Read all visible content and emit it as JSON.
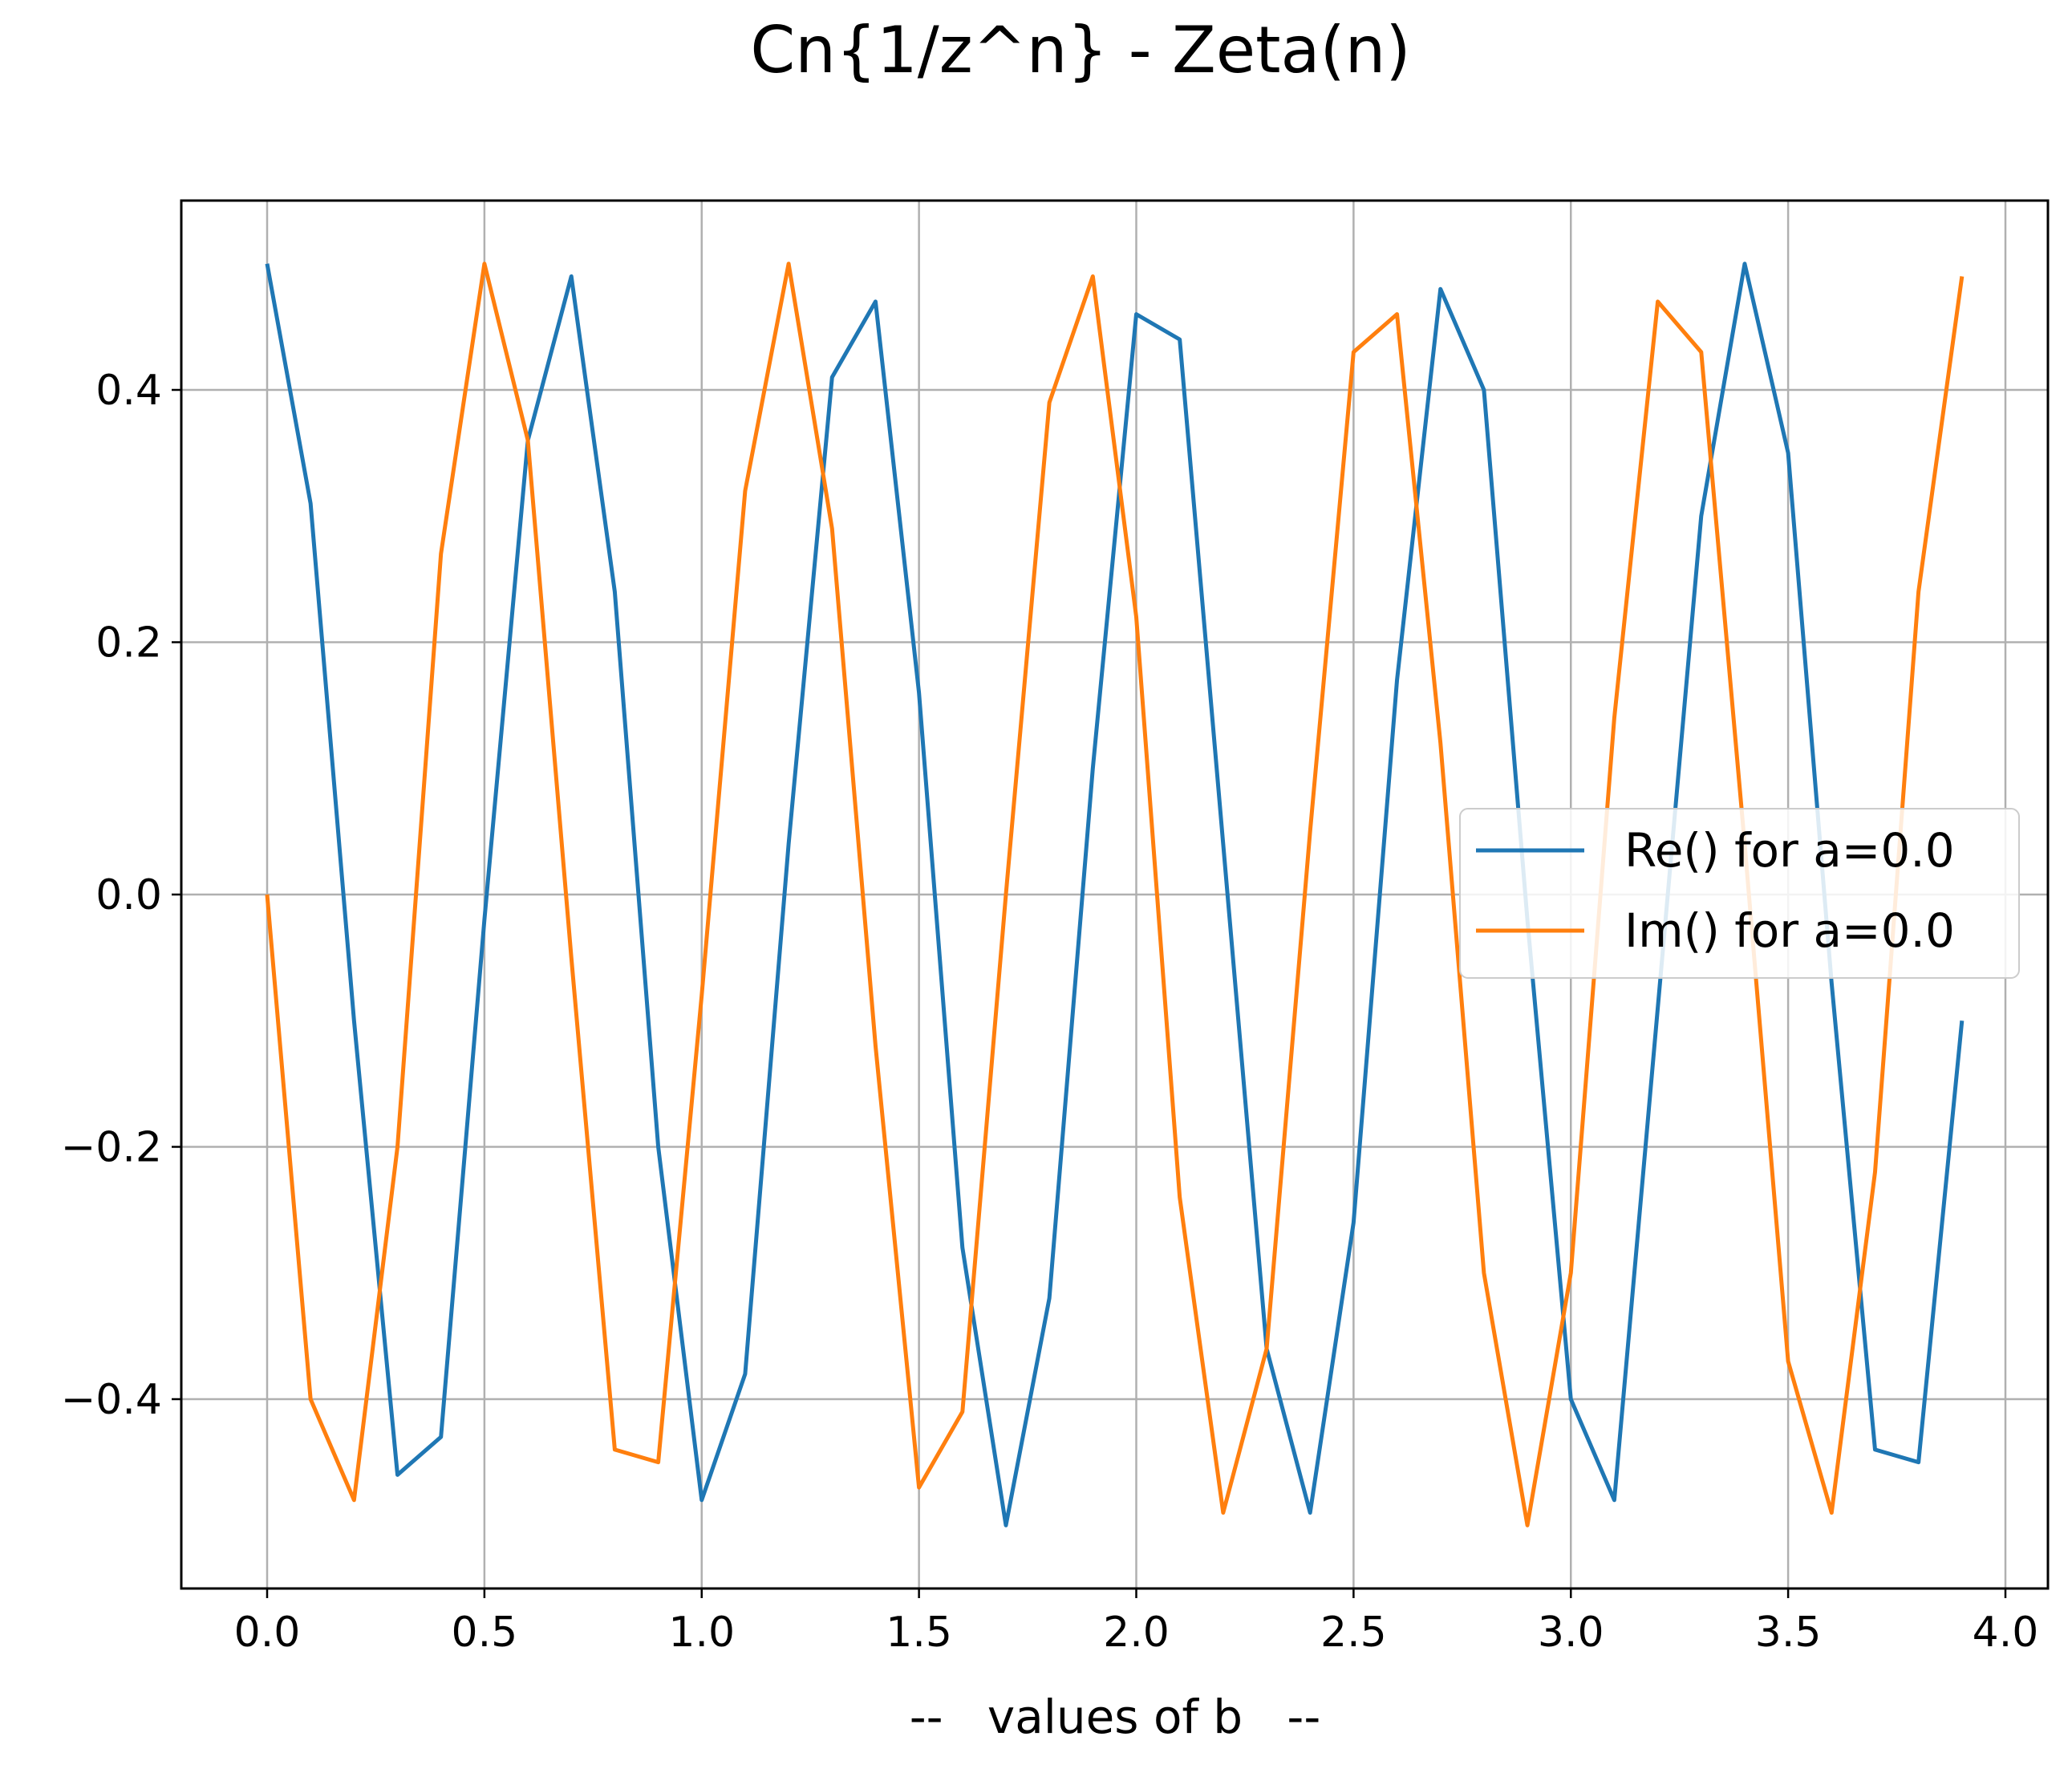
{
  "chart_data": {
    "type": "line",
    "title": "Cn{1/z^n} - Zeta(n)",
    "xlabel": "--   values of b   --",
    "ylabel": "",
    "xlim": [
      -0.2,
      4.1
    ],
    "ylim": [
      -0.55,
      0.55
    ],
    "xticks": [
      0.0,
      0.5,
      1.0,
      1.5,
      2.0,
      2.5,
      3.0,
      3.5,
      4.0
    ],
    "xtick_labels": [
      "0.0",
      "0.5",
      "1.0",
      "1.5",
      "2.0",
      "2.5",
      "3.0",
      "3.5",
      "4.0"
    ],
    "yticks": [
      -0.4,
      -0.2,
      0.0,
      0.2,
      0.4
    ],
    "ytick_labels": [
      "−0.4",
      "−0.2",
      "0.0",
      "0.2",
      "0.4"
    ],
    "grid": true,
    "legend_placement": "center-right",
    "x": [
      0.0,
      0.1,
      0.2,
      0.3,
      0.4,
      0.5,
      0.6,
      0.7,
      0.8,
      0.9,
      1.0,
      1.1,
      1.2,
      1.3,
      1.4,
      1.5,
      1.6,
      1.7,
      1.8,
      1.9,
      2.0,
      2.1,
      2.2,
      2.3,
      2.4,
      2.5,
      2.6,
      2.7,
      2.8,
      2.9,
      3.0,
      3.1,
      3.2,
      3.3,
      3.4,
      3.5,
      3.6,
      3.7,
      3.8,
      3.9
    ],
    "series": [
      {
        "name": "Re() for a=0.0",
        "color": "#1f77b4",
        "values": [
          0.5,
          0.31,
          -0.1,
          -0.46,
          -0.43,
          -0.02,
          0.36,
          0.49,
          0.24,
          -0.2,
          -0.48,
          -0.38,
          0.04,
          0.41,
          0.47,
          0.16,
          -0.28,
          -0.5,
          -0.32,
          0.1,
          0.46,
          0.44,
          0.04,
          -0.36,
          -0.49,
          -0.26,
          0.17,
          0.48,
          0.4,
          -0.02,
          -0.4,
          -0.48,
          -0.09,
          0.3,
          0.5,
          0.35,
          -0.07,
          -0.44,
          -0.45,
          -0.1
        ]
      },
      {
        "name": "Im() for a=0.0",
        "color": "#ff7f0e",
        "values": [
          0.0,
          -0.4,
          -0.48,
          -0.2,
          0.27,
          0.5,
          0.36,
          -0.05,
          -0.44,
          -0.45,
          -0.08,
          0.32,
          0.5,
          0.29,
          -0.12,
          -0.47,
          -0.41,
          0.0,
          0.39,
          0.49,
          0.22,
          -0.24,
          -0.49,
          -0.36,
          0.05,
          0.43,
          0.46,
          0.12,
          -0.3,
          -0.5,
          -0.3,
          0.14,
          0.47,
          0.43,
          0.04,
          -0.37,
          -0.49,
          -0.22,
          0.24,
          0.49
        ]
      }
    ]
  }
}
